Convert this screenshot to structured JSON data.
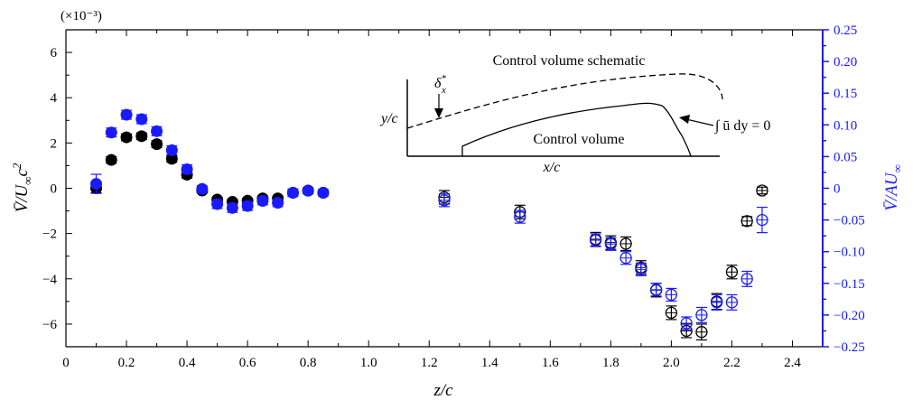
{
  "chart_data": {
    "type": "scatter",
    "title": "",
    "xlabel": "z/c",
    "xlim": [
      0,
      2.5
    ],
    "x_ticks": [
      "0",
      "0.2",
      "0.4",
      "0.6",
      "0.8",
      "1.0",
      "1.2",
      "1.4",
      "1.6",
      "1.8",
      "2.0",
      "2.2",
      "2.4"
    ],
    "left_axis": {
      "label_main": "V̄/U",
      "label_sub": "∞",
      "label_tail": "c",
      "label_sup": "2",
      "multiplier": "(×10⁻³)",
      "ylim": [
        -7,
        7
      ],
      "ticks": [
        "6",
        "4",
        "2",
        "0",
        "−2",
        "−4",
        "−6"
      ],
      "color": "#000000"
    },
    "right_axis": {
      "label_main": "V̄/AU",
      "label_sub": "∞",
      "ylim": [
        -0.25,
        0.25
      ],
      "ticks": [
        "0.25",
        "0.20",
        "0.15",
        "0.10",
        "0.05",
        "0",
        "−0.05",
        "−0.10",
        "−0.15",
        "−0.20",
        "−0.25"
      ],
      "color": "#1a1aff"
    },
    "series": [
      {
        "axis": "left",
        "color": "#000000",
        "marker": "filled",
        "x": [
          0.1,
          0.15,
          0.2,
          0.25,
          0.3,
          0.35,
          0.4,
          0.45,
          0.5,
          0.55,
          0.6,
          0.65,
          0.7,
          0.75,
          0.8,
          0.85
        ],
        "y": [
          0.0,
          1.25,
          2.25,
          2.3,
          1.95,
          1.3,
          0.6,
          -0.1,
          -0.5,
          -0.6,
          -0.55,
          -0.45,
          -0.45,
          -0.2,
          -0.1,
          -0.2
        ],
        "err": [
          0.2,
          0.15,
          0.15,
          0.15,
          0.15,
          0.15,
          0.15,
          0.1,
          0.1,
          0.1,
          0.1,
          0.1,
          0.1,
          0.1,
          0.1,
          0.1
        ]
      },
      {
        "axis": "right",
        "color": "#1a1aff",
        "marker": "filled",
        "x": [
          0.1,
          0.15,
          0.2,
          0.25,
          0.3,
          0.35,
          0.4,
          0.45,
          0.5,
          0.55,
          0.6,
          0.65,
          0.7,
          0.75,
          0.8,
          0.85
        ],
        "y": [
          0.007,
          0.088,
          0.116,
          0.109,
          0.09,
          0.06,
          0.03,
          -0.001,
          -0.025,
          -0.031,
          -0.028,
          -0.02,
          -0.023,
          -0.007,
          -0.004,
          -0.007
        ],
        "err": [
          0.015,
          0.007,
          0.007,
          0.007,
          0.007,
          0.007,
          0.007,
          0.005,
          0.007,
          0.007,
          0.007,
          0.006,
          0.006,
          0.006,
          0.005,
          0.005
        ]
      },
      {
        "axis": "left",
        "color": "#000000",
        "marker": "hollow",
        "x": [
          1.25,
          1.5,
          1.75,
          1.8,
          1.85,
          1.9,
          1.95,
          2.0,
          2.05,
          2.1,
          2.15,
          2.2,
          2.25,
          2.3
        ],
        "y": [
          -0.4,
          -1.05,
          -2.25,
          -2.4,
          -2.45,
          -3.5,
          -4.5,
          -5.5,
          -6.3,
          -6.35,
          -5.0,
          -3.7,
          -1.45,
          -0.1
        ],
        "err": [
          0.3,
          0.3,
          0.3,
          0.3,
          0.3,
          0.3,
          0.3,
          0.3,
          0.3,
          0.35,
          0.35,
          0.3,
          0.2,
          0.15
        ]
      },
      {
        "axis": "right",
        "color": "#1a1aff",
        "marker": "hollow",
        "x": [
          1.25,
          1.5,
          1.75,
          1.8,
          1.85,
          1.9,
          1.95,
          2.0,
          2.05,
          2.1,
          2.15,
          2.2,
          2.25,
          2.3
        ],
        "y": [
          -0.019,
          -0.045,
          -0.082,
          -0.088,
          -0.11,
          -0.128,
          -0.16,
          -0.168,
          -0.213,
          -0.2,
          -0.18,
          -0.18,
          -0.143,
          -0.05
        ],
        "err": [
          0.01,
          0.01,
          0.01,
          0.01,
          0.01,
          0.01,
          0.01,
          0.01,
          0.01,
          0.012,
          0.012,
          0.012,
          0.012,
          0.02
        ]
      }
    ]
  },
  "inset": {
    "title": "Control volume schematic",
    "delta_label": "δ*x",
    "delta_main": "δ",
    "delta_sup": "*",
    "delta_sub": "x",
    "ylabel": "y/c",
    "xlabel": "x/c",
    "region_label": "Control volume",
    "integral_label": "∫ ū dy = 0"
  }
}
